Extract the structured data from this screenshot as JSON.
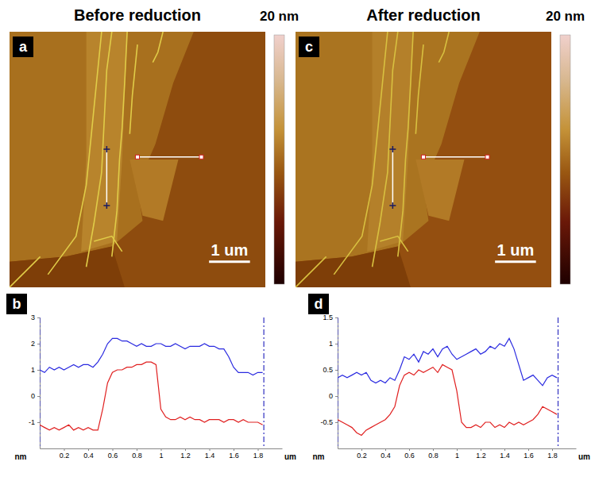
{
  "chart_data": [
    {
      "type": "image",
      "panel": "a",
      "title": "Before reduction",
      "colorbar_label": "20 nm",
      "scale_bar_label": "1 um"
    },
    {
      "type": "line",
      "panel": "b",
      "x": [
        0,
        0.04,
        0.08,
        0.12,
        0.16,
        0.2,
        0.24,
        0.28,
        0.32,
        0.36,
        0.4,
        0.44,
        0.48,
        0.52,
        0.56,
        0.6,
        0.64,
        0.68,
        0.72,
        0.76,
        0.8,
        0.84,
        0.88,
        0.92,
        0.96,
        1,
        1.04,
        1.08,
        1.12,
        1.16,
        1.2,
        1.24,
        1.28,
        1.32,
        1.36,
        1.4,
        1.44,
        1.48,
        1.52,
        1.56,
        1.6,
        1.64,
        1.68,
        1.72,
        1.76,
        1.8,
        1.84
      ],
      "series": [
        {
          "color": "#2a2ae0",
          "values": [
            1.0,
            0.9,
            1.1,
            1.0,
            1.1,
            1.0,
            1.1,
            1.2,
            1.1,
            1.2,
            1.2,
            1.1,
            1.3,
            1.6,
            2.0,
            2.2,
            2.2,
            2.1,
            2.1,
            2.0,
            1.9,
            2.0,
            1.9,
            1.9,
            2.0,
            2.0,
            1.9,
            1.9,
            2.0,
            1.9,
            1.8,
            1.9,
            1.9,
            1.9,
            2.0,
            1.9,
            1.9,
            1.8,
            1.8,
            1.5,
            1.1,
            0.9,
            0.9,
            0.9,
            0.8,
            0.9,
            0.9
          ]
        },
        {
          "color": "#e02020",
          "values": [
            -1.1,
            -1.2,
            -1.3,
            -1.2,
            -1.3,
            -1.2,
            -1.1,
            -1.3,
            -1.2,
            -1.3,
            -1.2,
            -1.3,
            -1.3,
            -0.5,
            0.5,
            0.9,
            1.0,
            1.0,
            1.1,
            1.1,
            1.2,
            1.2,
            1.3,
            1.3,
            1.2,
            -0.5,
            -0.8,
            -0.9,
            -0.9,
            -0.8,
            -0.9,
            -0.8,
            -0.9,
            -0.9,
            -1.0,
            -0.9,
            -0.9,
            -0.9,
            -1.0,
            -0.9,
            -0.9,
            -1.0,
            -0.9,
            -1.0,
            -1.0,
            -1.0,
            -1.1
          ]
        }
      ],
      "cursors": [
        0,
        1.85
      ],
      "xlim": [
        0,
        2
      ],
      "xticks": [
        0.2,
        0.4,
        0.6,
        0.8,
        1,
        1.2,
        1.4,
        1.6,
        1.8
      ],
      "ylim": [
        -2,
        3
      ],
      "yticks": [
        -1,
        0,
        1,
        2,
        3
      ],
      "x_label": "um",
      "y_label": "nm"
    },
    {
      "type": "image",
      "panel": "c",
      "title": "After reduction",
      "colorbar_label": "20 nm",
      "scale_bar_label": "1 um"
    },
    {
      "type": "line",
      "panel": "d",
      "x": [
        0,
        0.04,
        0.08,
        0.12,
        0.16,
        0.2,
        0.24,
        0.28,
        0.32,
        0.36,
        0.4,
        0.44,
        0.48,
        0.52,
        0.56,
        0.6,
        0.64,
        0.68,
        0.72,
        0.76,
        0.8,
        0.84,
        0.88,
        0.92,
        0.96,
        1,
        1.04,
        1.08,
        1.12,
        1.16,
        1.2,
        1.24,
        1.28,
        1.32,
        1.36,
        1.4,
        1.44,
        1.48,
        1.52,
        1.56,
        1.6,
        1.64,
        1.68,
        1.72,
        1.76,
        1.8,
        1.84
      ],
      "series": [
        {
          "color": "#2a2ae0",
          "values": [
            0.35,
            0.4,
            0.35,
            0.4,
            0.45,
            0.4,
            0.45,
            0.3,
            0.25,
            0.3,
            0.25,
            0.35,
            0.3,
            0.5,
            0.75,
            0.7,
            0.8,
            0.65,
            0.85,
            0.8,
            0.9,
            0.75,
            0.9,
            0.95,
            0.8,
            0.7,
            0.75,
            0.8,
            0.85,
            0.9,
            0.8,
            0.85,
            0.95,
            0.9,
            1.0,
            0.95,
            1.1,
            0.9,
            0.6,
            0.3,
            0.35,
            0.4,
            0.3,
            0.2,
            0.35,
            0.4,
            0.35
          ]
        },
        {
          "color": "#e02020",
          "values": [
            -0.45,
            -0.5,
            -0.55,
            -0.6,
            -0.7,
            -0.75,
            -0.65,
            -0.6,
            -0.55,
            -0.5,
            -0.45,
            -0.35,
            -0.2,
            0.2,
            0.4,
            0.45,
            0.4,
            0.5,
            0.45,
            0.5,
            0.55,
            0.45,
            0.6,
            0.55,
            0.5,
            0.1,
            -0.5,
            -0.6,
            -0.6,
            -0.55,
            -0.6,
            -0.5,
            -0.5,
            -0.6,
            -0.55,
            -0.6,
            -0.5,
            -0.55,
            -0.5,
            -0.55,
            -0.5,
            -0.45,
            -0.35,
            -0.2,
            -0.25,
            -0.3,
            -0.35
          ]
        }
      ],
      "cursors": [
        0,
        1.85
      ],
      "xlim": [
        0,
        2
      ],
      "xticks": [
        0.2,
        0.4,
        0.6,
        0.8,
        1,
        1.2,
        1.4,
        1.6,
        1.8
      ],
      "ylim": [
        -1,
        1.5
      ],
      "yticks": [
        -0.5,
        0,
        0.5,
        1,
        1.5
      ],
      "x_label": "um",
      "y_label": "nm"
    }
  ]
}
